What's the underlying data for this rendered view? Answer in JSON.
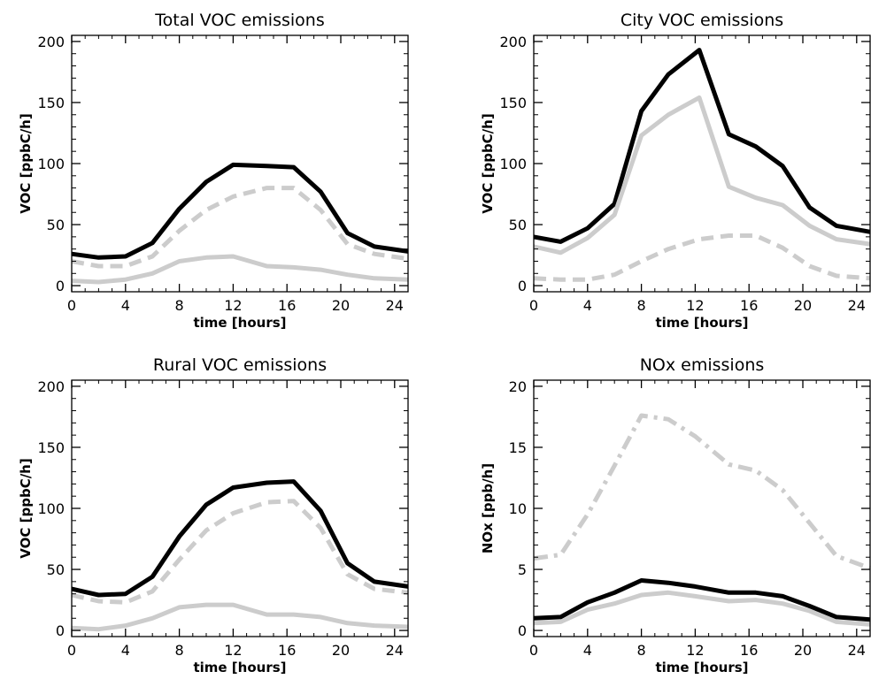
{
  "chart_data": [
    {
      "type": "line",
      "title": "Total VOC emissions",
      "xlabel": "time [hours]",
      "ylabel": "VOC [ppbC/h]",
      "xlim": [
        0,
        25
      ],
      "ylim": [
        -5,
        205
      ],
      "xticks": [
        0,
        4,
        8,
        12,
        16,
        20,
        24
      ],
      "yticks": [
        0,
        50,
        100,
        150,
        200
      ],
      "x": [
        0,
        2,
        4,
        6,
        8,
        10,
        12,
        14.5,
        16.5,
        18.5,
        20.5,
        22.5,
        25
      ],
      "series": [
        {
          "style": "solid",
          "color": "#000000",
          "values": [
            26,
            23,
            24,
            35,
            63,
            85,
            99,
            98,
            97,
            77,
            43,
            32,
            28
          ]
        },
        {
          "style": "dashed",
          "color": "#cccccc",
          "values": [
            20,
            16,
            16,
            24,
            45,
            62,
            73,
            80,
            80,
            62,
            34,
            26,
            22
          ]
        },
        {
          "style": "solid",
          "color": "#cccccc",
          "values": [
            4,
            3,
            5,
            10,
            20,
            23,
            24,
            16,
            15,
            13,
            9,
            6,
            5
          ]
        }
      ]
    },
    {
      "type": "line",
      "title": "City VOC emissions",
      "xlabel": "time [hours]",
      "ylabel": "VOC [ppbC/h]",
      "xlim": [
        0,
        25
      ],
      "ylim": [
        -5,
        205
      ],
      "xticks": [
        0,
        4,
        8,
        12,
        16,
        20,
        24
      ],
      "yticks": [
        0,
        50,
        100,
        150,
        200
      ],
      "x": [
        0,
        2,
        4,
        6,
        8,
        10,
        12.3,
        14.5,
        16.5,
        18.5,
        20.5,
        22.5,
        25
      ],
      "series": [
        {
          "style": "solid",
          "color": "#000000",
          "values": [
            40,
            36,
            47,
            67,
            143,
            173,
            193,
            124,
            114,
            98,
            64,
            49,
            44
          ]
        },
        {
          "style": "solid",
          "color": "#cccccc",
          "values": [
            32,
            27,
            39,
            58,
            123,
            140,
            154,
            81,
            72,
            66,
            49,
            38,
            34
          ]
        },
        {
          "style": "dashed",
          "color": "#cccccc",
          "values": [
            6,
            5,
            5,
            9,
            20,
            30,
            38,
            41,
            41,
            31,
            16,
            8,
            6
          ]
        }
      ]
    },
    {
      "type": "line",
      "title": "Rural VOC emissions",
      "xlabel": "time [hours]",
      "ylabel": "VOC [ppbC/h]",
      "xlim": [
        0,
        25
      ],
      "ylim": [
        -5,
        205
      ],
      "xticks": [
        0,
        4,
        8,
        12,
        16,
        20,
        24
      ],
      "yticks": [
        0,
        50,
        100,
        150,
        200
      ],
      "x": [
        0,
        2,
        4,
        6,
        8,
        10,
        12,
        14.5,
        16.5,
        18.5,
        20.5,
        22.5,
        25
      ],
      "series": [
        {
          "style": "solid",
          "color": "#000000",
          "values": [
            34,
            29,
            30,
            44,
            77,
            103,
            117,
            121,
            122,
            98,
            55,
            40,
            36
          ]
        },
        {
          "style": "dashed",
          "color": "#cccccc",
          "values": [
            29,
            24,
            23,
            32,
            58,
            82,
            96,
            105,
            106,
            84,
            46,
            34,
            31
          ]
        },
        {
          "style": "solid",
          "color": "#cccccc",
          "values": [
            2,
            1,
            4,
            10,
            19,
            21,
            21,
            13,
            13,
            11,
            6,
            4,
            3
          ]
        }
      ]
    },
    {
      "type": "line",
      "title": "NOx emissions",
      "xlabel": "time [hours]",
      "ylabel": "NOx [ppb/h]",
      "xlim": [
        0,
        25
      ],
      "ylim": [
        -0.5,
        20.5
      ],
      "xticks": [
        0,
        4,
        8,
        12,
        16,
        20,
        24
      ],
      "yticks": [
        0,
        5,
        10,
        15,
        20
      ],
      "x": [
        0,
        2,
        4,
        6,
        8,
        10,
        12,
        14.5,
        16.5,
        18.5,
        20.5,
        22.5,
        25
      ],
      "series": [
        {
          "style": "dashdot",
          "color": "#cccccc",
          "values": [
            5.9,
            6.2,
            9.5,
            13.5,
            17.6,
            17.3,
            15.9,
            13.6,
            13.1,
            11.5,
            8.8,
            6.1,
            5.1
          ]
        },
        {
          "style": "solid",
          "color": "#000000",
          "values": [
            1.0,
            1.1,
            2.3,
            3.1,
            4.1,
            3.9,
            3.6,
            3.1,
            3.1,
            2.8,
            2.0,
            1.1,
            0.9
          ]
        },
        {
          "style": "solid",
          "color": "#cccccc",
          "values": [
            0.6,
            0.7,
            1.7,
            2.2,
            2.9,
            3.1,
            2.8,
            2.4,
            2.5,
            2.2,
            1.6,
            0.7,
            0.5
          ]
        }
      ]
    }
  ]
}
